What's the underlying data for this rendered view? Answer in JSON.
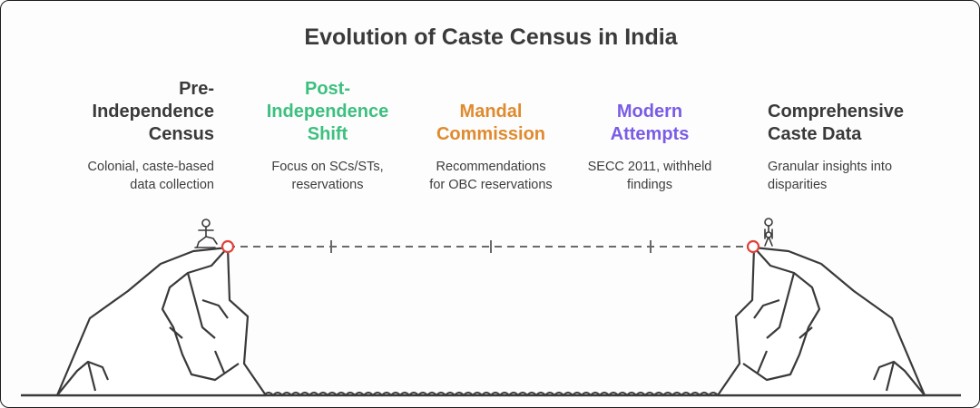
{
  "title": "Evolution of Caste Census in India",
  "colors": {
    "stage1": "#3a3a3a",
    "stage2": "#3cc07f",
    "stage3": "#e08a2e",
    "stage4": "#7a5ce6",
    "stage5": "#3a3a3a",
    "marker": "#e0413a",
    "line": "#3a3a3a"
  },
  "stages": [
    {
      "heading": "Pre-\nIndependence\nCensus",
      "description": "Colonial, caste-based\ndata collection"
    },
    {
      "heading": "Post-\nIndependence\nShift",
      "description": "Focus on SCs/STs,\nreservations"
    },
    {
      "heading": "Mandal\nCommission",
      "description": "Recommendations\nfor OBC reservations"
    },
    {
      "heading": "Modern\nAttempts",
      "description": "SECC 2011, withheld\nfindings"
    },
    {
      "heading": "Comprehensive\nCaste Data",
      "description": "Granular insights into\ndisparities"
    }
  ],
  "icons": {
    "start_figure": "person-walking-icon",
    "end_figure": "person-standing-icon",
    "cliffs": "cliff-icon",
    "water": "water-waves-icon"
  }
}
